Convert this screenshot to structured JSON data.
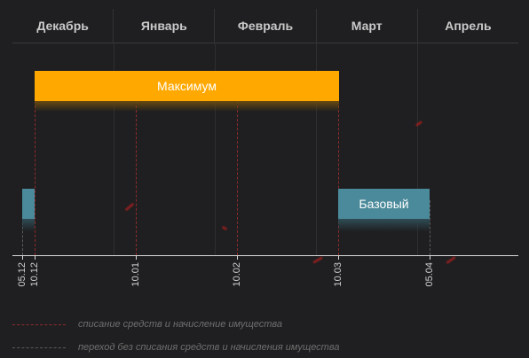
{
  "months": [
    "Декабрь",
    "Январь",
    "Февраль",
    "Март",
    "Апрель"
  ],
  "bars": {
    "maximum_label": "Максимум",
    "basic_label": "Базовый"
  },
  "dates": [
    "05.12",
    "10.12",
    "10.01",
    "10.02",
    "10.03",
    "05.04"
  ],
  "legend": {
    "debit": "списание средств и начисление имущества",
    "transfer": "переход без списания средств и начисления имущества"
  },
  "colors": {
    "maximum": "#ffa800",
    "basic": "#4b8a9a",
    "debit_line": "#8e2a2a",
    "transfer_line": "#5a5a5a"
  }
}
